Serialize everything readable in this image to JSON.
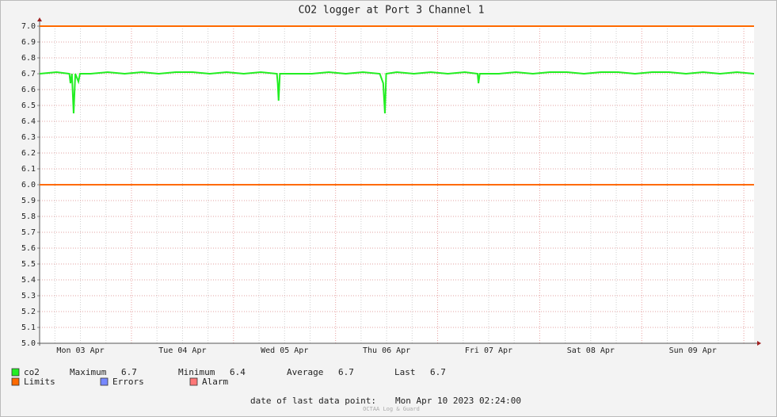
{
  "chart_data": {
    "type": "line",
    "title": "CO2 logger at Port 3 Channel 1",
    "xlim": [
      0,
      168
    ],
    "ylim": [
      5.0,
      7.0
    ],
    "xticks": [
      {
        "value": 9.6,
        "label": "Mon 03 Apr"
      },
      {
        "value": 33.6,
        "label": "Tue 04 Apr"
      },
      {
        "value": 57.6,
        "label": "Wed 05 Apr"
      },
      {
        "value": 81.6,
        "label": "Thu 06 Apr"
      },
      {
        "value": 105.6,
        "label": "Fri 07 Apr"
      },
      {
        "value": 129.6,
        "label": "Sat 08 Apr"
      },
      {
        "value": 153.6,
        "label": "Sun 09 Apr"
      }
    ],
    "xmajor": [
      21.6,
      45.6,
      69.6,
      93.6,
      117.6,
      141.6,
      165.6
    ],
    "xgrid": [
      3.6,
      9.6,
      15.6,
      27.6,
      33.6,
      39.6,
      51.6,
      57.6,
      63.6,
      75.6,
      81.6,
      87.6,
      99.6,
      105.6,
      111.6,
      123.6,
      129.6,
      135.6,
      147.6,
      153.6,
      159.6
    ],
    "yticks": [
      {
        "value": 5.0,
        "label": "5.0"
      },
      {
        "value": 5.1,
        "label": "5.1"
      },
      {
        "value": 5.2,
        "label": "5.2"
      },
      {
        "value": 5.3,
        "label": "5.3"
      },
      {
        "value": 5.4,
        "label": "5.4"
      },
      {
        "value": 5.5,
        "label": "5.5"
      },
      {
        "value": 5.6,
        "label": "5.6"
      },
      {
        "value": 5.7,
        "label": "5.7"
      },
      {
        "value": 5.8,
        "label": "5.8"
      },
      {
        "value": 5.9,
        "label": "5.9"
      },
      {
        "value": 6.0,
        "label": "6.0"
      },
      {
        "value": 6.1,
        "label": "6.1"
      },
      {
        "value": 6.2,
        "label": "6.2"
      },
      {
        "value": 6.3,
        "label": "6.3"
      },
      {
        "value": 6.4,
        "label": "6.4"
      },
      {
        "value": 6.5,
        "label": "6.5"
      },
      {
        "value": 6.6,
        "label": "6.6"
      },
      {
        "value": 6.7,
        "label": "6.7"
      },
      {
        "value": 6.8,
        "label": "6.8"
      },
      {
        "value": 6.9,
        "label": "6.9"
      },
      {
        "value": 7.0,
        "label": "7.0"
      }
    ],
    "grid": true,
    "series": [
      {
        "name": "co2",
        "color": "#22ee22",
        "x": [
          0,
          4,
          7.0,
          7.26,
          7.6,
          8.0,
          8.4,
          9.13,
          9.5,
          12,
          16,
          20,
          24,
          28,
          32,
          36,
          40,
          44,
          48,
          52,
          55.8,
          56.0,
          56.2,
          56.5,
          60,
          64,
          68,
          72,
          76,
          80,
          80.8,
          81.2,
          81.5,
          84,
          88,
          92,
          96,
          100,
          103.0,
          103.2,
          103.5,
          108,
          112,
          116,
          120,
          124,
          128,
          132,
          136,
          140,
          144,
          148,
          152,
          156,
          160,
          164,
          168
        ],
        "values": [
          6.7,
          6.71,
          6.7,
          6.64,
          6.7,
          6.45,
          6.7,
          6.65,
          6.7,
          6.7,
          6.71,
          6.7,
          6.71,
          6.7,
          6.71,
          6.71,
          6.7,
          6.71,
          6.7,
          6.71,
          6.7,
          6.64,
          6.53,
          6.7,
          6.7,
          6.7,
          6.71,
          6.7,
          6.71,
          6.7,
          6.64,
          6.45,
          6.7,
          6.71,
          6.7,
          6.71,
          6.7,
          6.71,
          6.7,
          6.64,
          6.7,
          6.7,
          6.71,
          6.7,
          6.71,
          6.71,
          6.7,
          6.71,
          6.71,
          6.7,
          6.71,
          6.71,
          6.7,
          6.71,
          6.7,
          6.71,
          6.7
        ]
      }
    ],
    "limits": {
      "name": "Limits",
      "color": "#ff6a00",
      "values": [
        6.0,
        7.0
      ]
    },
    "extra_legend": [
      {
        "name": "Errors",
        "color": "#7788ff"
      },
      {
        "name": "Alarm",
        "color": "#ff7777"
      }
    ],
    "stats": [
      {
        "label": "Maximum",
        "value": 6.7
      },
      {
        "label": "Minimum",
        "value": 6.4
      },
      {
        "label": "Average",
        "value": 6.7
      },
      {
        "label": "Last",
        "value": 6.7
      }
    ],
    "footer_label": "date of last data point:",
    "footer_date": "Mon Apr 10 2023 02:24:00",
    "watermark": "OCTAA Log & Guard"
  }
}
